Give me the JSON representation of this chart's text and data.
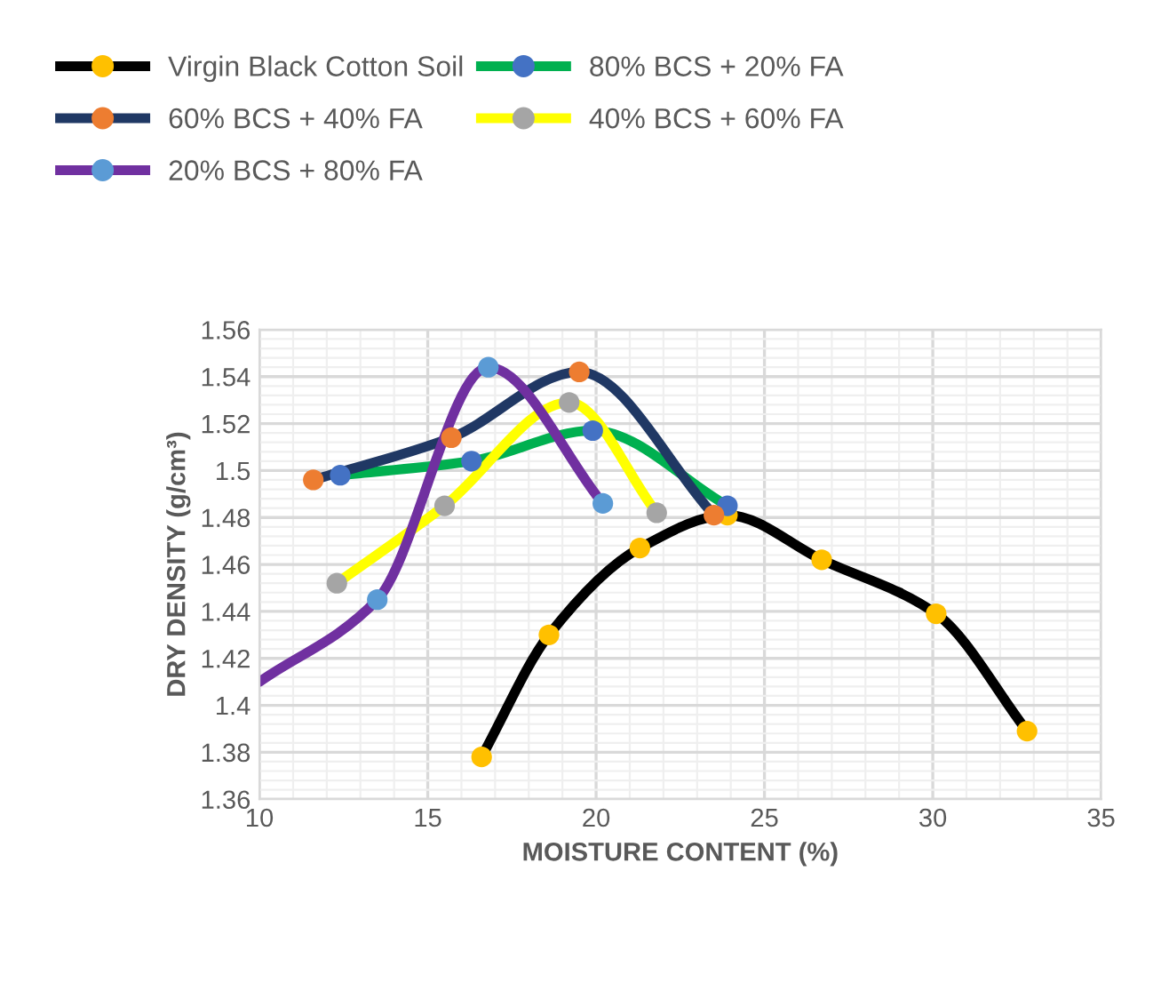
{
  "chart_data": {
    "type": "line",
    "xlabel": "MOISTURE CONTENT (%)",
    "ylabel": "DRY DENSITY (g/cm³)",
    "xlim": [
      10,
      35
    ],
    "xticks": [
      10,
      15,
      20,
      25,
      30,
      35
    ],
    "ylim": [
      1.36,
      1.56
    ],
    "yticks": [
      1.36,
      1.38,
      1.4,
      1.42,
      1.44,
      1.46,
      1.48,
      1.5,
      1.52,
      1.54,
      1.56
    ],
    "grid": true,
    "legend": "top",
    "marker": "circle",
    "line_style": "solid",
    "series": [
      {
        "name": "Virgin Black Cotton Soil",
        "color": "#000000",
        "colors": [
          "#ffc000",
          "#ffc000",
          "#ffc000",
          "#ffc000",
          "#ffc000",
          "#ffc000",
          "#ffc000"
        ],
        "x": [
          16.6,
          18.6,
          21.3,
          23.9,
          26.7,
          30.1,
          32.8
        ],
        "values": [
          1.378,
          1.43,
          1.467,
          1.481,
          1.462,
          1.439,
          1.389
        ]
      },
      {
        "name": "80% BCS + 20% FA",
        "color": "#00b050",
        "colors": [
          "#4472c4",
          "#4472c4",
          "#4472c4",
          "#4472c4"
        ],
        "x": [
          12.4,
          16.3,
          19.9,
          23.9
        ],
        "values": [
          1.498,
          1.504,
          1.517,
          1.485
        ]
      },
      {
        "name": "60% BCS + 40% FA",
        "color": "#203864",
        "colors": [
          "#ed7d31",
          "#ed7d31",
          "#ed7d31",
          "#ed7d31"
        ],
        "x": [
          11.6,
          15.7,
          19.5,
          23.5
        ],
        "values": [
          1.496,
          1.514,
          1.542,
          1.481
        ]
      },
      {
        "name": "40% BCS + 60% FA",
        "color": "#ffff00",
        "colors": [
          "#a5a5a5",
          "#a5a5a5",
          "#a5a5a5",
          "#a5a5a5"
        ],
        "x": [
          12.3,
          15.5,
          19.2,
          21.8
        ],
        "values": [
          1.452,
          1.485,
          1.529,
          1.482
        ]
      },
      {
        "name": "20% BCS + 80% FA",
        "color": "#7030a0",
        "colors": [
          null,
          "#5b9bd5",
          "#5b9bd5",
          "#5b9bd5"
        ],
        "x": [
          10,
          13.5,
          16.8,
          20.2
        ],
        "values": [
          1.41,
          1.445,
          1.544,
          1.486
        ]
      }
    ]
  }
}
